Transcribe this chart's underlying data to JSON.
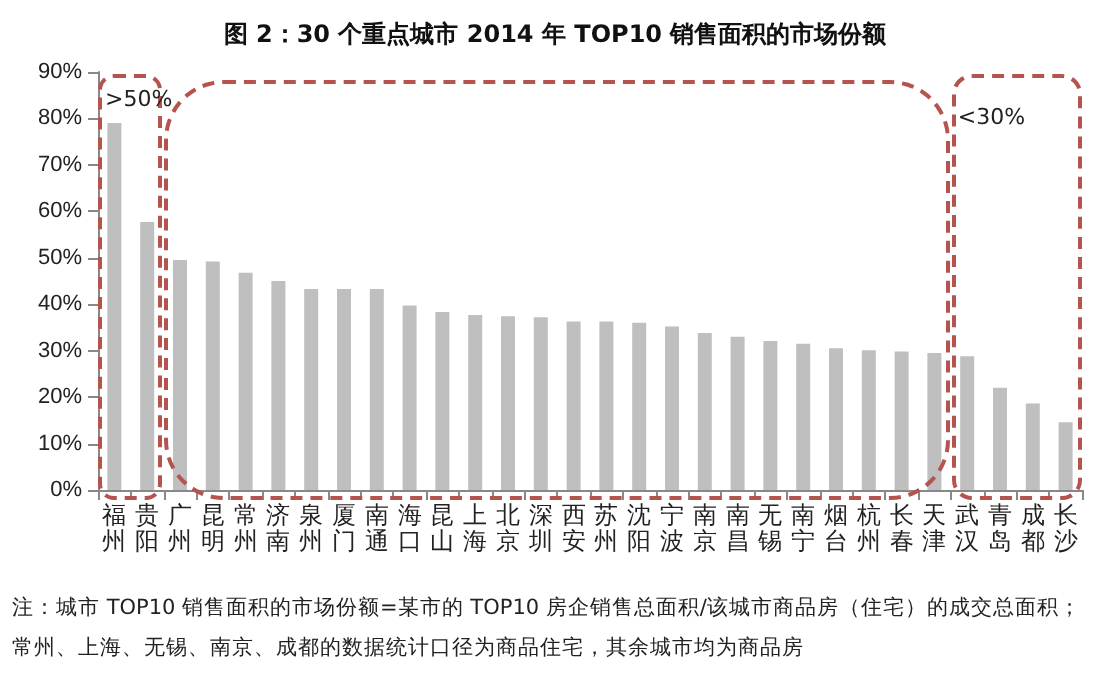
{
  "chart_data": {
    "type": "bar",
    "title": "图 2：30 个重点城市 2014 年 TOP10 销售面积的市场份额",
    "categories": [
      "福州",
      "贵阳",
      "广州",
      "昆明",
      "常州",
      "济南",
      "泉州",
      "厦门",
      "南通",
      "海口",
      "昆山",
      "上海",
      "北京",
      "深圳",
      "西安",
      "苏州",
      "沈阳",
      "宁波",
      "南京",
      "南昌",
      "无锡",
      "南宁",
      "烟台",
      "杭州",
      "长春",
      "天津",
      "武汉",
      "青岛",
      "成都",
      "长沙"
    ],
    "values": [
      79,
      57.7,
      49.5,
      49.2,
      46.8,
      45,
      43.3,
      43.3,
      43.3,
      39.7,
      38.3,
      37.7,
      37.4,
      37.2,
      36.3,
      36.3,
      36,
      35.2,
      33.8,
      33,
      32.1,
      31.5,
      30.5,
      30.1,
      29.8,
      29.5,
      28.8,
      22,
      18.6,
      14.6
    ],
    "color": "#bfbfbf",
    "ylim": [
      0,
      90
    ],
    "yticks": [
      {
        "value": 0,
        "label": "0%"
      },
      {
        "value": 10,
        "label": "10%"
      },
      {
        "value": 20,
        "label": "20%"
      },
      {
        "value": 30,
        "label": "30%"
      },
      {
        "value": 40,
        "label": "40%"
      },
      {
        "value": 50,
        "label": "50%"
      },
      {
        "value": 60,
        "label": "60%"
      },
      {
        "value": 70,
        "label": "70%"
      },
      {
        "value": 80,
        "label": "80%"
      },
      {
        "value": 90,
        "label": "90%"
      }
    ],
    "grid": false,
    "annotations": [
      ">50%",
      "<30%",
      "注：城市 TOP10 销售面积的市场份额=某市的 TOP10 房企销售总面积/该城市商品房（住宅）的成交总面积；",
      "常州、上海、无锡、南京、成都的数据统计口径为商品住宅，其余城市均为商品房"
    ]
  }
}
